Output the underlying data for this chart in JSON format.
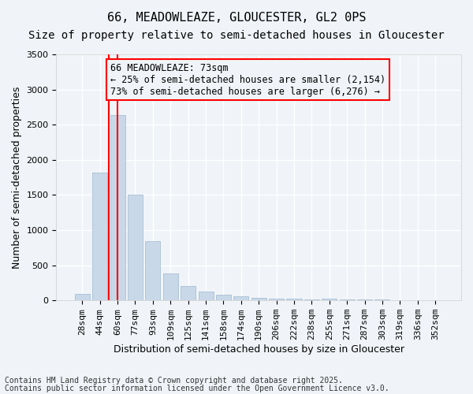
{
  "title1": "66, MEADOWLEAZE, GLOUCESTER, GL2 0PS",
  "title2": "Size of property relative to semi-detached houses in Gloucester",
  "xlabel": "Distribution of semi-detached houses by size in Gloucester",
  "ylabel": "Number of semi-detached properties",
  "categories": [
    "28sqm",
    "44sqm",
    "60sqm",
    "77sqm",
    "93sqm",
    "109sqm",
    "125sqm",
    "141sqm",
    "158sqm",
    "174sqm",
    "190sqm",
    "206sqm",
    "222sqm",
    "238sqm",
    "255sqm",
    "271sqm",
    "287sqm",
    "303sqm",
    "319sqm",
    "336sqm",
    "352sqm"
  ],
  "values": [
    95,
    1820,
    2640,
    1500,
    840,
    380,
    205,
    130,
    80,
    55,
    40,
    25,
    20,
    15,
    30,
    10,
    10,
    10,
    5,
    5,
    5
  ],
  "bar_color": "#c8d8e8",
  "bar_edgecolor": "#a0b8d0",
  "vline_x": 2,
  "vline_color": "red",
  "annotation_text": "66 MEADOWLEAZE: 73sqm\n← 25% of semi-detached houses are smaller (2,154)\n73% of semi-detached houses are larger (6,276) →",
  "annotation_box_color": "red",
  "ylim": [
    0,
    3500
  ],
  "yticks": [
    0,
    500,
    1000,
    1500,
    2000,
    2500,
    3000,
    3500
  ],
  "background_color": "#f0f4f8",
  "grid_color": "white",
  "footer_line1": "Contains HM Land Registry data © Crown copyright and database right 2025.",
  "footer_line2": "Contains public sector information licensed under the Open Government Licence v3.0.",
  "title1_fontsize": 11,
  "title2_fontsize": 10,
  "xlabel_fontsize": 9,
  "ylabel_fontsize": 9,
  "tick_fontsize": 8,
  "annotation_fontsize": 8.5,
  "footer_fontsize": 7
}
